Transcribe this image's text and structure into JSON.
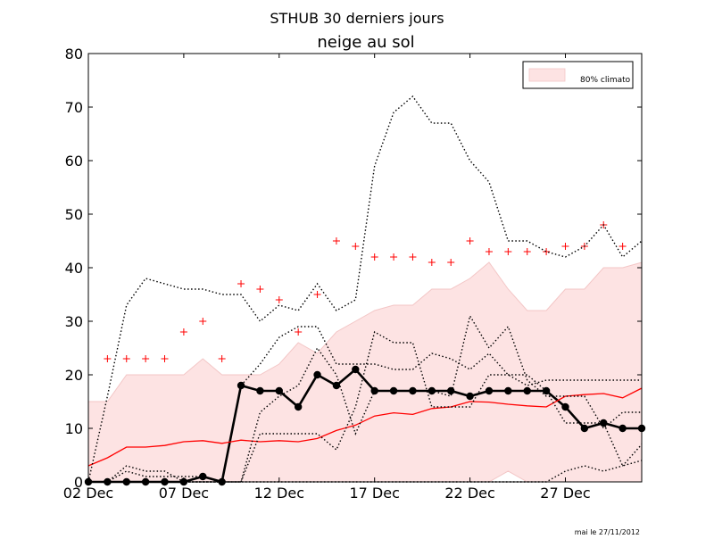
{
  "header": {
    "title": "STHUB 30 derniers jours",
    "subtitle": "neige au sol"
  },
  "footer": {
    "note": "mai le 27/11/2012"
  },
  "chart_data": {
    "type": "line",
    "title": "STHUB 30 derniers jours",
    "subtitle": "neige au sol",
    "xlabel": "",
    "ylabel": "",
    "x": [
      2,
      3,
      4,
      5,
      6,
      7,
      8,
      9,
      10,
      11,
      12,
      13,
      14,
      15,
      16,
      17,
      18,
      19,
      20,
      21,
      22,
      23,
      24,
      25,
      26,
      27,
      28,
      29,
      30,
      31
    ],
    "xlim": [
      2,
      31
    ],
    "ylim": [
      0,
      80
    ],
    "x_ticks": [
      {
        "value": 2,
        "label": "02 Dec"
      },
      {
        "value": 7,
        "label": "07 Dec"
      },
      {
        "value": 12,
        "label": "12 Dec"
      },
      {
        "value": 17,
        "label": "17 Dec"
      },
      {
        "value": 22,
        "label": "22 Dec"
      },
      {
        "value": 27,
        "label": "27 Dec"
      }
    ],
    "y_ticks": [
      0,
      10,
      20,
      30,
      40,
      50,
      60,
      70,
      80
    ],
    "legend": {
      "placement": "top-right",
      "entries": [
        "80% climato"
      ]
    },
    "grid": false,
    "band_80pct_climato": {
      "upper": [
        15,
        15,
        20,
        20,
        20,
        20,
        23,
        20,
        20,
        20,
        22,
        26,
        24,
        28,
        30,
        32,
        33,
        33,
        36,
        36,
        38,
        41,
        36,
        32,
        32,
        36,
        36,
        40,
        40,
        41
      ],
      "lower": [
        0,
        0,
        0,
        0,
        0,
        0,
        0,
        0,
        0,
        0,
        0,
        0,
        0,
        0,
        0,
        0,
        0,
        0,
        0,
        0,
        0,
        0,
        2,
        0,
        0,
        0,
        0,
        0,
        0,
        0
      ],
      "color": "#fde3e3"
    },
    "series": [
      {
        "style": "observed",
        "color": "#000000",
        "values": [
          0,
          0,
          0,
          0,
          0,
          0,
          1,
          0,
          18,
          17,
          17,
          14,
          20,
          18,
          21,
          17,
          17,
          17,
          17,
          17,
          16,
          17,
          17,
          17,
          17,
          14,
          10,
          11,
          10,
          10
        ]
      },
      {
        "style": "median-climato",
        "color": "#ff0000",
        "values": [
          3,
          4.5,
          6.5,
          6.5,
          6.8,
          7.5,
          7.7,
          7.2,
          7.8,
          7.5,
          7.7,
          7.5,
          8.1,
          9.6,
          10.6,
          12.3,
          12.9,
          12.6,
          13.7,
          14,
          15,
          14.9,
          14.5,
          14.2,
          14,
          16,
          16.3,
          16.5,
          15.7,
          17.5
        ]
      },
      {
        "style": "max-climato",
        "color": "#ff0000",
        "marker": "+",
        "values": [
          null,
          23,
          23,
          23,
          23,
          28,
          30,
          23,
          37,
          36,
          34,
          28,
          35,
          45,
          44,
          42,
          42,
          42,
          41,
          41,
          45,
          43,
          43,
          43,
          43,
          44,
          44,
          48,
          44,
          null
        ]
      },
      {
        "style": "envelope-high",
        "color": "#000000",
        "dash": "dotted",
        "values": [
          0,
          16,
          33,
          38,
          37,
          36,
          36,
          35,
          35,
          30,
          33,
          32,
          37,
          32,
          34,
          59,
          69,
          72,
          67,
          67,
          60,
          56,
          45,
          45,
          43,
          42,
          44,
          48,
          42,
          45
        ]
      },
      {
        "style": "envelope-mid-1",
        "color": "#000000",
        "dash": "dotted",
        "values": [
          0,
          0,
          0,
          0,
          0,
          0,
          0,
          0,
          18,
          22,
          27,
          29,
          29,
          22,
          22,
          22,
          21,
          21,
          24,
          23,
          21,
          24,
          20,
          18,
          19,
          19,
          19,
          19,
          19,
          19
        ]
      },
      {
        "style": "envelope-mid-2",
        "color": "#000000",
        "dash": "dotted",
        "values": [
          0,
          0,
          3,
          2,
          2,
          0,
          0,
          0,
          0,
          13,
          16,
          18,
          25,
          20,
          9,
          17,
          17,
          17,
          17,
          16,
          31,
          25,
          29,
          19,
          16,
          16,
          16,
          10,
          13,
          13
        ]
      },
      {
        "style": "envelope-mid-3",
        "color": "#000000",
        "dash": "dotted",
        "values": [
          0,
          0,
          2,
          1,
          1,
          1,
          1,
          0,
          0,
          9,
          9,
          9,
          9,
          6,
          14,
          28,
          26,
          26,
          14,
          14,
          14,
          20,
          20,
          20,
          17,
          11,
          11,
          11,
          3,
          4
        ]
      },
      {
        "style": "envelope-low",
        "color": "#000000",
        "dash": "dotted",
        "values": [
          0,
          0,
          0,
          0,
          0,
          0,
          0,
          0,
          0,
          0,
          0,
          0,
          0,
          0,
          0,
          0,
          0,
          0,
          0,
          0,
          0,
          0,
          0,
          0,
          0,
          2,
          3,
          2,
          3,
          7
        ]
      }
    ]
  }
}
